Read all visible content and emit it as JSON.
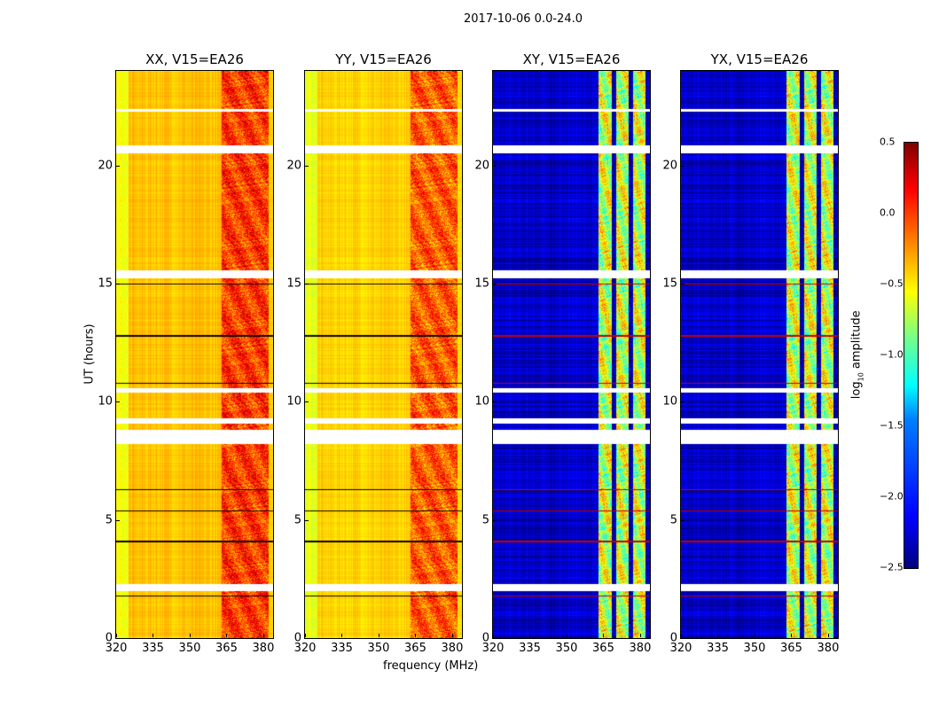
{
  "chart_data": {
    "type": "heatmap",
    "title": "2017-10-06 0.0-24.0",
    "xlabel": "frequency (MHz)",
    "ylabel": "UT (hours)",
    "xlim": [
      320,
      384
    ],
    "ylim": [
      0,
      24
    ],
    "xticks": [
      "320",
      "335",
      "350",
      "365",
      "380"
    ],
    "yticks": [
      "0",
      "5",
      "10",
      "15",
      "20"
    ],
    "xtick_values": [
      320,
      335,
      350,
      365,
      380
    ],
    "ytick_values": [
      0,
      5,
      10,
      15,
      20
    ],
    "colormap": "jet",
    "colorbar": {
      "label": "log₁₀ amplitude",
      "range": [
        -2.5,
        0.5
      ],
      "ticks": [
        "0.5",
        "0.0",
        "−0.5",
        "−1.0",
        "−1.5",
        "−2.0",
        "−2.5"
      ],
      "tick_values": [
        0.5,
        0.0,
        -0.5,
        -1.0,
        -1.5,
        -2.0,
        -2.5
      ]
    },
    "panels": [
      {
        "title": "XX, V15=EA26",
        "background": -0.45,
        "band_level": 0.15
      },
      {
        "title": "YY, V15=EA26",
        "background": -0.5,
        "band_level": 0.05
      },
      {
        "title": "XY, V15=EA26",
        "background": -2.3,
        "band_level": -0.8
      },
      {
        "title": "YX, V15=EA26",
        "background": -2.3,
        "band_level": -0.8
      }
    ],
    "rfi_bands_mhz": [
      [
        363,
        369
      ],
      [
        370,
        376
      ],
      [
        377,
        382
      ]
    ],
    "flagged_time_ranges_h": [
      [
        2.0,
        2.3
      ],
      [
        8.25,
        8.85
      ],
      [
        9.1,
        9.3
      ],
      [
        10.4,
        10.6
      ],
      [
        15.25,
        15.6
      ],
      [
        20.55,
        20.85
      ],
      [
        22.3,
        22.4
      ]
    ],
    "strong_time_rows_h": [
      15.0,
      12.8,
      10.8,
      6.3,
      5.4,
      4.1,
      1.8
    ]
  }
}
